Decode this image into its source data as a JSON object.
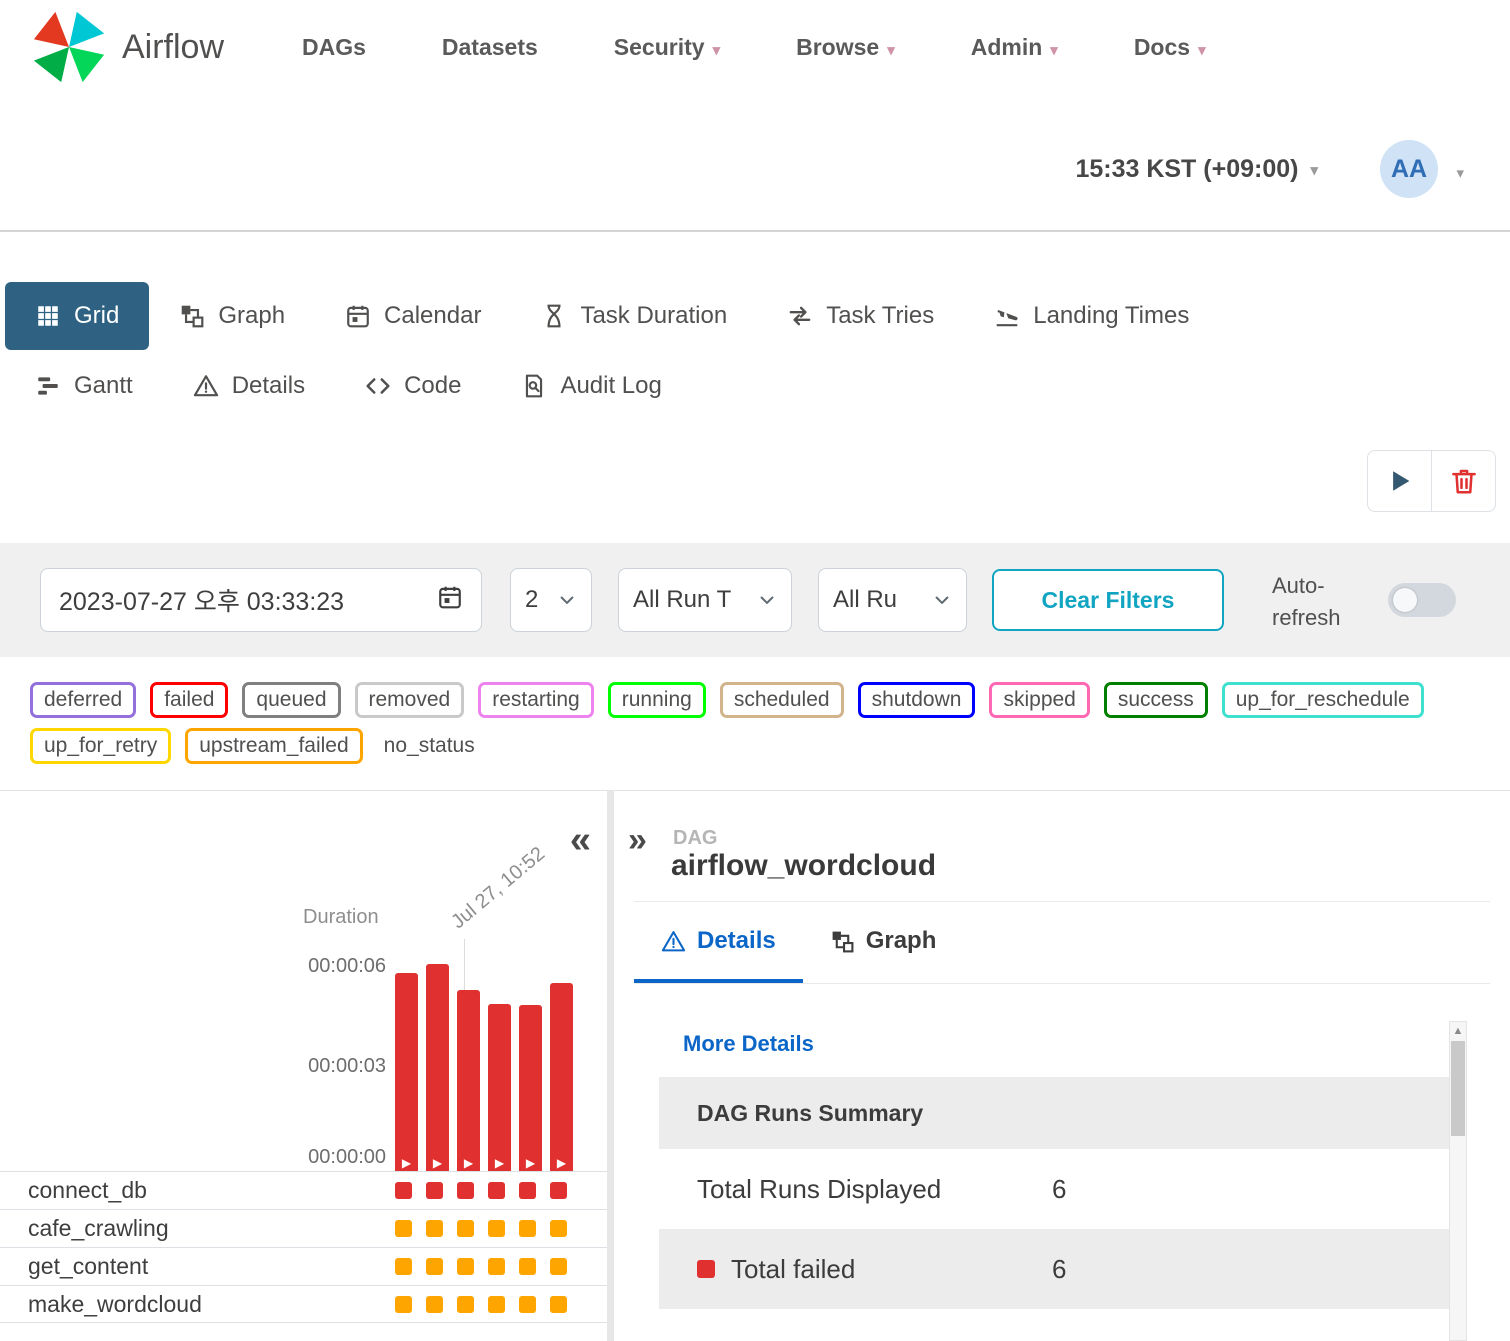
{
  "header": {
    "logo_text": "Airflow",
    "logo_icon": "airflow-pinwheel-icon",
    "nav_items": [
      {
        "label": "DAGs",
        "caret": false
      },
      {
        "label": "Datasets",
        "caret": false
      },
      {
        "label": "Security",
        "caret": true
      },
      {
        "label": "Browse",
        "caret": true
      },
      {
        "label": "Admin",
        "caret": true
      },
      {
        "label": "Docs",
        "caret": true
      }
    ],
    "clock": "15:33 KST (+09:00)",
    "avatar_initials": "AA"
  },
  "view_tabs": {
    "row1": [
      {
        "label": "Grid",
        "icon": "grid-icon",
        "active": true
      },
      {
        "label": "Graph",
        "icon": "graph-icon",
        "active": false
      },
      {
        "label": "Calendar",
        "icon": "calendar-icon",
        "active": false
      },
      {
        "label": "Task Duration",
        "icon": "hourglass-icon",
        "active": false
      },
      {
        "label": "Task Tries",
        "icon": "retries-icon",
        "active": false
      },
      {
        "label": "Landing Times",
        "icon": "landing-icon",
        "active": false
      }
    ],
    "row2": [
      {
        "label": "Gantt",
        "icon": "gantt-icon",
        "active": false
      },
      {
        "label": "Details",
        "icon": "warning-icon",
        "active": false
      },
      {
        "label": "Code",
        "icon": "code-icon",
        "active": false
      },
      {
        "label": "Audit Log",
        "icon": "audit-icon",
        "active": false
      }
    ]
  },
  "actions": {
    "run_icon": "play-icon",
    "delete_icon": "trash-icon"
  },
  "filters": {
    "date_value": "2023-07-27 오후 03:33:23",
    "date_icon": "calendar-icon",
    "page_size": "2",
    "run_types": "All Run T",
    "run_states": "All Ru",
    "clear_label": "Clear Filters",
    "auto_refresh_label": "Auto-refresh",
    "auto_refresh_on": false
  },
  "legend": [
    {
      "label": "deferred",
      "color": "#9370DB"
    },
    {
      "label": "failed",
      "color": "#ff0000"
    },
    {
      "label": "queued",
      "color": "#808080"
    },
    {
      "label": "removed",
      "color": "#c9c9c9"
    },
    {
      "label": "restarting",
      "color": "#ee82ee"
    },
    {
      "label": "running",
      "color": "#00ff00"
    },
    {
      "label": "scheduled",
      "color": "#d2b48c"
    },
    {
      "label": "shutdown",
      "color": "#0000ff"
    },
    {
      "label": "skipped",
      "color": "#ff69b4"
    },
    {
      "label": "success",
      "color": "#008000"
    },
    {
      "label": "up_for_reschedule",
      "color": "#40e0d0"
    },
    {
      "label": "up_for_retry",
      "color": "#ffd700"
    },
    {
      "label": "upstream_failed",
      "color": "#ffa500"
    },
    {
      "label": "no_status",
      "color": "transparent"
    }
  ],
  "grid_panel": {
    "collapse_glyph": "«",
    "chart": {
      "type": "bar",
      "ylabel": "Duration",
      "hover_label": "Jul 27, 10:52",
      "yticks": [
        "00:00:06",
        "00:00:03",
        "00:00:00"
      ],
      "ymax_seconds": 6,
      "bar_color": "#e0302f",
      "bar_state": "failed",
      "values_seconds": [
        5.8,
        6.05,
        5.3,
        4.9,
        4.85,
        5.5
      ]
    },
    "tasks": [
      {
        "name": "connect_db",
        "square_color": "#e0302f",
        "runs": 6
      },
      {
        "name": "cafe_crawling",
        "square_color": "#ffa500",
        "runs": 6
      },
      {
        "name": "get_content",
        "square_color": "#ffa500",
        "runs": 6
      },
      {
        "name": "make_wordcloud",
        "square_color": "#ffa500",
        "runs": 6
      }
    ]
  },
  "details_panel": {
    "expand_glyph": "»",
    "kicker": "DAG",
    "title": "airflow_wordcloud",
    "tabs": [
      {
        "label": "Details",
        "icon": "warning-icon",
        "active": true
      },
      {
        "label": "Graph",
        "icon": "graph-icon",
        "active": false
      }
    ],
    "more_details": "More Details",
    "summary": {
      "header": "DAG Runs Summary",
      "rows": [
        {
          "label": "Total Runs Displayed",
          "value": "6",
          "swatch": null
        },
        {
          "label": "Total failed",
          "value": "6",
          "swatch": "#e0302f"
        }
      ]
    }
  },
  "colors": {
    "active_tab_bg": "#2f6282",
    "failed_red": "#e0302f",
    "link_blue": "#0b66c8",
    "clear_filters_teal": "#12a5c2"
  }
}
